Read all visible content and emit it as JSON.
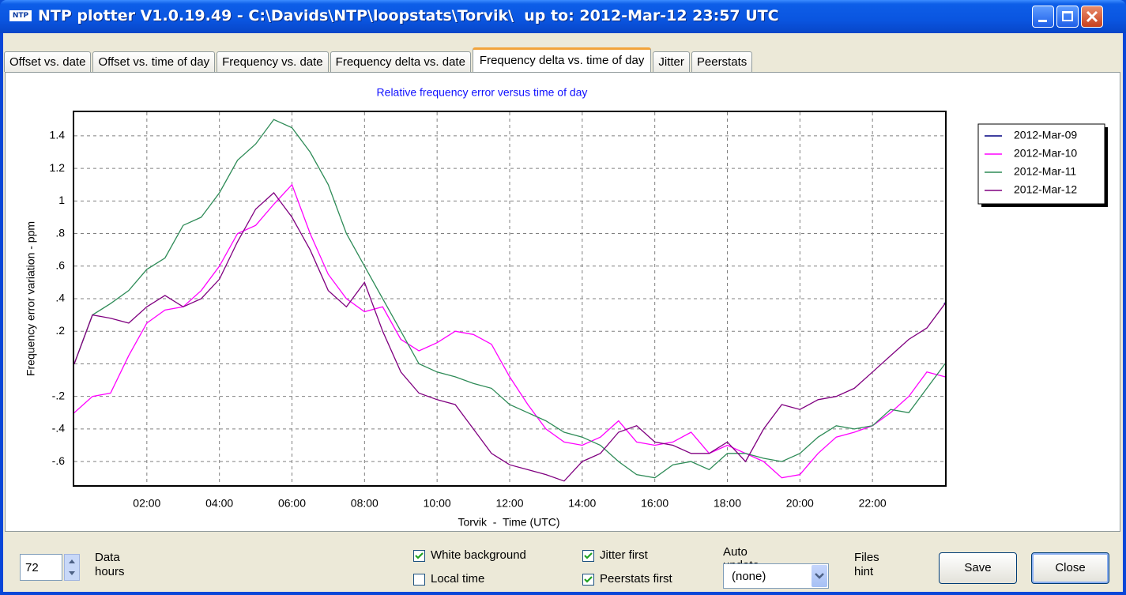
{
  "window": {
    "title": "NTP plotter V1.0.19.49 - C:\\Davids\\NTP\\loopstats\\Torvik\\  up to: 2012-Mar-12 23:57 UTC",
    "icon": "NTP"
  },
  "tabs": [
    {
      "label": "Offset vs. date",
      "selected": false
    },
    {
      "label": "Offset vs. time of day",
      "selected": false
    },
    {
      "label": "Frequency vs. date",
      "selected": false
    },
    {
      "label": "Frequency delta vs. date",
      "selected": false
    },
    {
      "label": "Frequency delta vs. time of day",
      "selected": true
    },
    {
      "label": "Jitter",
      "selected": false
    },
    {
      "label": "Peerstats",
      "selected": false
    }
  ],
  "chart_data": {
    "type": "line",
    "title": "Relative frequency error versus time of day",
    "xlabel": "Torvik  -  Time (UTC)",
    "ylabel": "Frequency error variation - ppm",
    "x": [
      0,
      0.5,
      1,
      1.5,
      2,
      2.5,
      3,
      3.5,
      4,
      4.5,
      5,
      5.5,
      6,
      6.5,
      7,
      7.5,
      8,
      8.5,
      9,
      9.5,
      10,
      10.5,
      11,
      11.5,
      12,
      12.5,
      13,
      13.5,
      14,
      14.5,
      15,
      15.5,
      16,
      16.5,
      17,
      17.5,
      18,
      18.5,
      19,
      19.5,
      20,
      20.5,
      21,
      21.5,
      22,
      22.5,
      23,
      23.5,
      24
    ],
    "series": [
      {
        "name": "2012-Mar-09",
        "color": "#000080",
        "values": [
          null,
          null,
          null,
          null,
          null,
          null,
          null,
          null,
          null,
          null,
          null,
          null,
          null,
          null,
          null,
          null,
          null,
          null,
          null,
          null,
          null,
          null,
          null,
          null,
          null,
          null,
          null,
          null,
          null,
          null,
          null,
          null,
          null,
          null,
          null,
          null,
          null,
          null,
          null,
          null,
          null,
          null,
          null,
          null,
          null,
          null,
          null,
          null,
          0.37
        ]
      },
      {
        "name": "2012-Mar-10",
        "color": "#ff00ff",
        "values": [
          -0.3,
          -0.2,
          -0.18,
          0.05,
          0.25,
          0.33,
          0.35,
          0.45,
          0.6,
          0.8,
          0.85,
          0.98,
          1.1,
          0.8,
          0.55,
          0.4,
          0.32,
          0.35,
          0.15,
          0.08,
          0.13,
          0.2,
          0.18,
          0.12,
          -0.08,
          -0.25,
          -0.4,
          -0.48,
          -0.5,
          -0.45,
          -0.35,
          -0.48,
          -0.5,
          -0.48,
          -0.42,
          -0.55,
          -0.5,
          -0.55,
          -0.6,
          -0.7,
          -0.68,
          -0.55,
          -0.45,
          -0.42,
          -0.38,
          -0.3,
          -0.2,
          -0.05,
          -0.08
        ]
      },
      {
        "name": "2012-Mar-11",
        "color": "#2e8b57",
        "values": [
          0,
          0.3,
          0.37,
          0.45,
          0.58,
          0.65,
          0.85,
          0.9,
          1.05,
          1.25,
          1.35,
          1.5,
          1.45,
          1.3,
          1.1,
          0.8,
          0.6,
          0.4,
          0.2,
          0,
          -0.05,
          -0.08,
          -0.12,
          -0.15,
          -0.25,
          -0.3,
          -0.35,
          -0.42,
          -0.45,
          -0.5,
          -0.6,
          -0.68,
          -0.7,
          -0.62,
          -0.6,
          -0.65,
          -0.55,
          -0.55,
          -0.58,
          -0.6,
          -0.55,
          -0.45,
          -0.38,
          -0.4,
          -0.38,
          -0.28,
          -0.3,
          -0.15,
          0
        ]
      },
      {
        "name": "2012-Mar-12",
        "color": "#800080",
        "values": [
          0,
          0.3,
          0.28,
          0.25,
          0.35,
          0.42,
          0.35,
          0.4,
          0.52,
          0.75,
          0.95,
          1.05,
          0.9,
          0.7,
          0.45,
          0.35,
          0.5,
          0.2,
          -0.05,
          -0.18,
          -0.22,
          -0.25,
          -0.4,
          -0.55,
          -0.62,
          -0.65,
          -0.68,
          -0.72,
          -0.6,
          -0.55,
          -0.42,
          -0.38,
          -0.48,
          -0.5,
          -0.55,
          -0.55,
          -0.48,
          -0.6,
          -0.4,
          -0.25,
          -0.28,
          -0.22,
          -0.2,
          -0.15,
          -0.05,
          0.05,
          0.15,
          0.22,
          0.37
        ]
      }
    ],
    "xlim": [
      0,
      24
    ],
    "xticks": [
      {
        "value": 2,
        "label": "02:00"
      },
      {
        "value": 4,
        "label": "04:00"
      },
      {
        "value": 6,
        "label": "06:00"
      },
      {
        "value": 8,
        "label": "08:00"
      },
      {
        "value": 10,
        "label": "10:00"
      },
      {
        "value": 12,
        "label": "12:00"
      },
      {
        "value": 14,
        "label": "14:00"
      },
      {
        "value": 16,
        "label": "16:00"
      },
      {
        "value": 18,
        "label": "18:00"
      },
      {
        "value": 20,
        "label": "20:00"
      },
      {
        "value": 22,
        "label": "22:00"
      }
    ],
    "ylim": [
      -0.745,
      1.545
    ],
    "yticks": [
      {
        "value": -0.6,
        "label": "-.6"
      },
      {
        "value": -0.4,
        "label": "-.4"
      },
      {
        "value": -0.2,
        "label": "-.2"
      },
      {
        "value": 0,
        "label": null
      },
      {
        "value": 0.2,
        "label": ".2"
      },
      {
        "value": 0.4,
        "label": ".4"
      },
      {
        "value": 0.6,
        "label": ".6"
      },
      {
        "value": 0.8,
        "label": ".8"
      },
      1,
      {
        "value": 1.2,
        "label": "1.2"
      },
      {
        "value": 1.4,
        "label": "1.4"
      }
    ],
    "grid": true,
    "legend": "upper right"
  },
  "controls": {
    "data_hours": {
      "value": "72",
      "label": [
        "Data",
        "hours"
      ]
    },
    "checkboxes": [
      {
        "label": "White background",
        "checked": true
      },
      {
        "label": "Local time",
        "checked": false
      },
      {
        "label": "Jitter first",
        "checked": true
      },
      {
        "label": "Peerstats first",
        "checked": true
      }
    ],
    "auto_update": {
      "label": "Auto update",
      "value": "(none)"
    },
    "files_hint": [
      "Files",
      "hint"
    ],
    "buttons": [
      "Save",
      "Close"
    ]
  }
}
